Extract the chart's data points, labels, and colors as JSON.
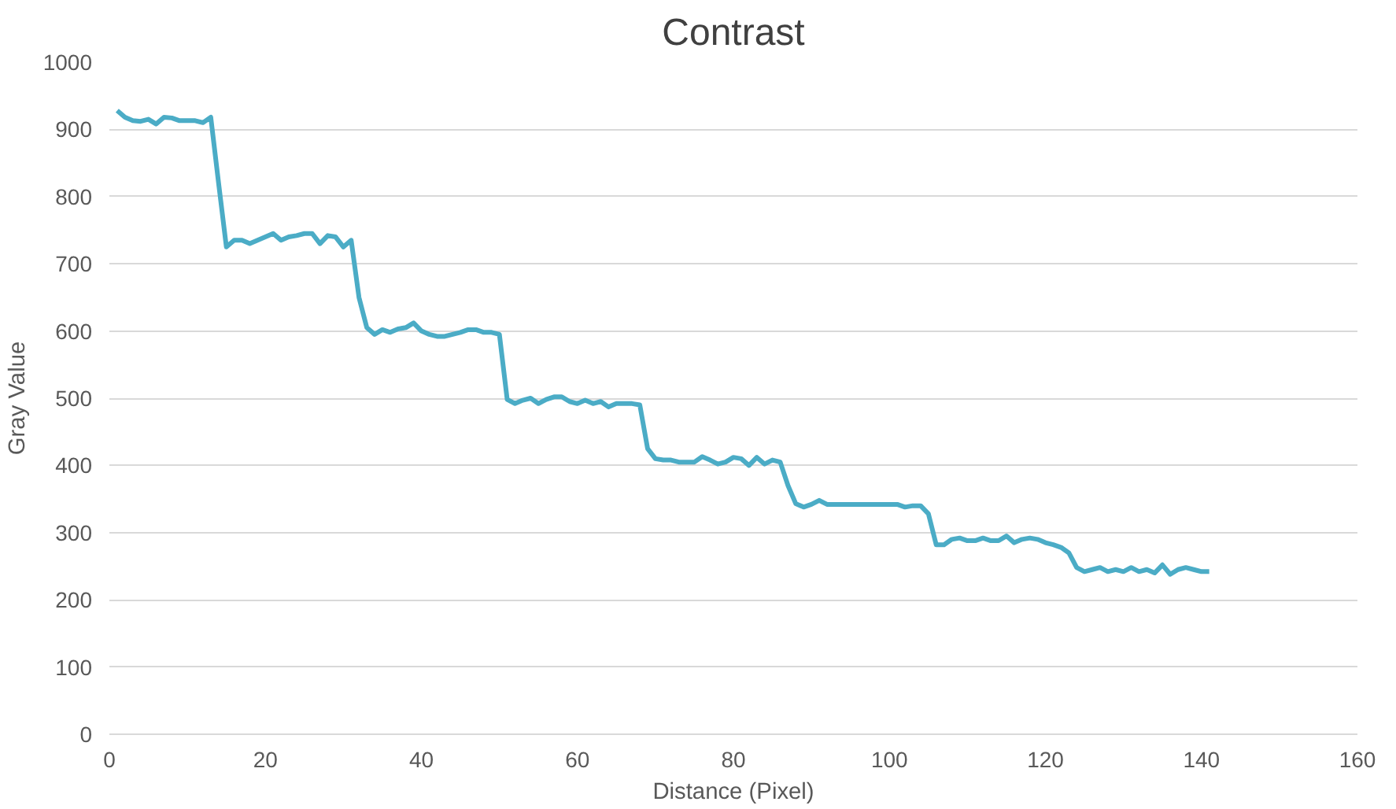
{
  "chart_data": {
    "type": "line",
    "title": "Contrast",
    "xlabel": "Distance (Pixel)",
    "ylabel": "Gray Value",
    "xlim": [
      0,
      160
    ],
    "xticks": [
      0,
      20,
      40,
      60,
      80,
      100,
      120,
      140,
      160
    ],
    "ylim": [
      0,
      1000
    ],
    "yticks": [
      0,
      100,
      200,
      300,
      400,
      500,
      600,
      700,
      800,
      900,
      1000
    ],
    "grid": "y",
    "marker": "none",
    "line_style": "solid",
    "series": [
      {
        "color": "#4bacc6",
        "x": [
          1,
          2,
          3,
          4,
          5,
          6,
          7,
          8,
          9,
          10,
          11,
          12,
          13,
          14,
          15,
          16,
          17,
          18,
          19,
          20,
          21,
          22,
          23,
          24,
          25,
          26,
          27,
          28,
          29,
          30,
          31,
          32,
          33,
          34,
          35,
          36,
          37,
          38,
          39,
          40,
          41,
          42,
          43,
          44,
          45,
          46,
          47,
          48,
          49,
          50,
          51,
          52,
          53,
          54,
          55,
          56,
          57,
          58,
          59,
          60,
          61,
          62,
          63,
          64,
          65,
          66,
          67,
          68,
          69,
          70,
          71,
          72,
          73,
          74,
          75,
          76,
          77,
          78,
          79,
          80,
          81,
          82,
          83,
          84,
          85,
          86,
          87,
          88,
          89,
          90,
          91,
          92,
          93,
          94,
          95,
          96,
          97,
          98,
          99,
          100,
          101,
          102,
          103,
          104,
          105,
          106,
          107,
          108,
          109,
          110,
          111,
          112,
          113,
          114,
          115,
          116,
          117,
          118,
          119,
          120,
          121,
          122,
          123,
          124,
          125,
          126,
          127,
          128,
          129,
          130,
          131,
          132,
          133,
          134,
          135,
          136,
          137,
          138,
          139,
          140,
          141
        ],
        "values": [
          928,
          918,
          913,
          912,
          915,
          908,
          918,
          917,
          913,
          913,
          913,
          910,
          918,
          820,
          725,
          735,
          735,
          730,
          735,
          740,
          745,
          735,
          740,
          742,
          745,
          745,
          730,
          742,
          740,
          725,
          735,
          650,
          605,
          595,
          602,
          598,
          603,
          605,
          612,
          600,
          595,
          592,
          592,
          595,
          598,
          602,
          602,
          598,
          598,
          595,
          498,
          492,
          497,
          500,
          492,
          498,
          502,
          502,
          495,
          492,
          497,
          492,
          495,
          487,
          492,
          492,
          492,
          490,
          425,
          410,
          408,
          408,
          405,
          405,
          405,
          413,
          408,
          402,
          405,
          412,
          410,
          400,
          412,
          402,
          408,
          405,
          370,
          343,
          338,
          342,
          348,
          342,
          342,
          342,
          342,
          342,
          342,
          342,
          342,
          342,
          342,
          338,
          340,
          340,
          328,
          282,
          282,
          290,
          292,
          288,
          288,
          292,
          288,
          288,
          295,
          285,
          290,
          292,
          290,
          285,
          282,
          278,
          270,
          248,
          242,
          245,
          248,
          242,
          245,
          242,
          248,
          242,
          245,
          240,
          252,
          238,
          245,
          248,
          245,
          242,
          242
        ]
      }
    ]
  }
}
